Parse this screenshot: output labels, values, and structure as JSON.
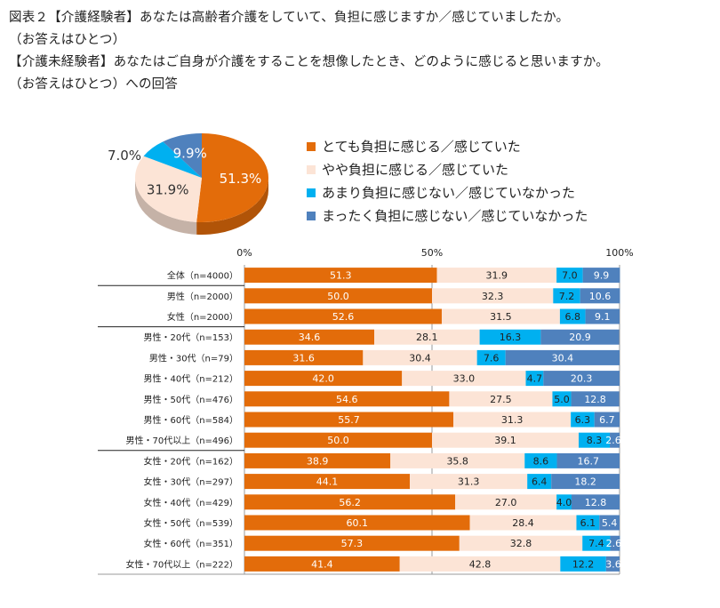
{
  "title_lines": [
    "図表２【介護経験者】あなたは高齢者介護をしていて、負担に感じますか／感じていましたか。",
    "（お答えはひとつ）",
    "【介護未経験者】あなたはご自身が介護をすることを想像したとき、どのように感じると思いますか。",
    "（お答えはひとつ）への回答"
  ],
  "chart_data": [
    {
      "type": "pie",
      "title": "",
      "categories": [
        "とても負担に感じる／感じていた",
        "やや負担に感じる／感じていた",
        "あまり負担に感じない／感じていなかった",
        "まったく負担に感じない／感じていなかった"
      ],
      "values": [
        51.3,
        31.9,
        7.0,
        9.9
      ],
      "labels": [
        "51.3%",
        "31.9%",
        "7.0%",
        "9.9%"
      ],
      "colors": [
        "#E36C0A",
        "#FCE4D6",
        "#00B0F0",
        "#4F81BD"
      ],
      "legend": "right"
    },
    {
      "type": "bar",
      "stacked": true,
      "orientation": "horizontal",
      "xlim": [
        0,
        100
      ],
      "xticks": [
        "0%",
        "50%",
        "100%"
      ],
      "categories": [
        "全体（n=4000）",
        "男性（n=2000）",
        "女性（n=2000）",
        "男性・20代（n=153）",
        "男性・30代（n=79）",
        "男性・40代（n=212）",
        "男性・50代（n=476）",
        "男性・60代（n=584）",
        "男性・70代以上（n=496）",
        "女性・20代（n=162）",
        "女性・30代（n=297）",
        "女性・40代（n=429）",
        "女性・50代（n=539）",
        "女性・60代（n=351）",
        "女性・70代以上（n=222）"
      ],
      "series": [
        {
          "name": "とても負担に感じる／感じていた",
          "values": [
            51.3,
            50.0,
            52.6,
            34.6,
            31.6,
            42.0,
            54.6,
            55.7,
            50.0,
            38.9,
            44.1,
            56.2,
            60.1,
            57.3,
            41.4
          ],
          "labels": [
            "51.3",
            "50.0",
            "52.6",
            "34.6",
            "31.6",
            "42.0",
            "54.6",
            "55.7",
            "50.0",
            "38.9",
            "44.1",
            "56.2",
            "60.1",
            "57.3",
            "41.4"
          ]
        },
        {
          "name": "やや負担に感じる／感じていた",
          "values": [
            31.9,
            32.3,
            31.5,
            28.1,
            30.4,
            33.0,
            27.5,
            31.3,
            39.1,
            35.8,
            31.3,
            27.0,
            28.4,
            32.8,
            42.8
          ],
          "labels": [
            "31.9",
            "32.3",
            "31.5",
            "28.1",
            "30.4",
            "33.0",
            "27.5",
            "31.3",
            "39.1",
            "35.8",
            "31.3",
            "27.0",
            "28.4",
            "32.8",
            "42.8"
          ]
        },
        {
          "name": "あまり負担に感じない／感じていなかった",
          "values": [
            7.0,
            7.2,
            6.8,
            16.3,
            7.6,
            4.7,
            5.0,
            6.3,
            8.3,
            8.6,
            6.4,
            4.0,
            6.1,
            7.4,
            12.2
          ],
          "labels": [
            "7.0",
            "7.2",
            "6.8",
            "16.3",
            "7.6",
            "4.7",
            "5.0",
            "6.3",
            "8.3",
            "8.6",
            "6.4",
            "4.0",
            "6.1",
            "7.4",
            "12.2"
          ]
        },
        {
          "name": "まったく負担に感じない／感じていなかった",
          "values": [
            9.9,
            10.6,
            9.1,
            20.9,
            30.4,
            20.3,
            12.8,
            6.7,
            2.6,
            16.7,
            18.2,
            12.8,
            5.4,
            2.6,
            3.6
          ],
          "labels": [
            "9.9",
            "10.6",
            "9.1",
            "20.9",
            "30.4",
            "20.3",
            "12.8",
            "6.7",
            "2.6",
            "16.7",
            "18.2",
            "12.8",
            "5.4",
            "2.6",
            "3.6"
          ]
        }
      ],
      "colors": [
        "#E36C0A",
        "#FCE4D6",
        "#00B0F0",
        "#4F81BD"
      ],
      "grid": true
    }
  ]
}
